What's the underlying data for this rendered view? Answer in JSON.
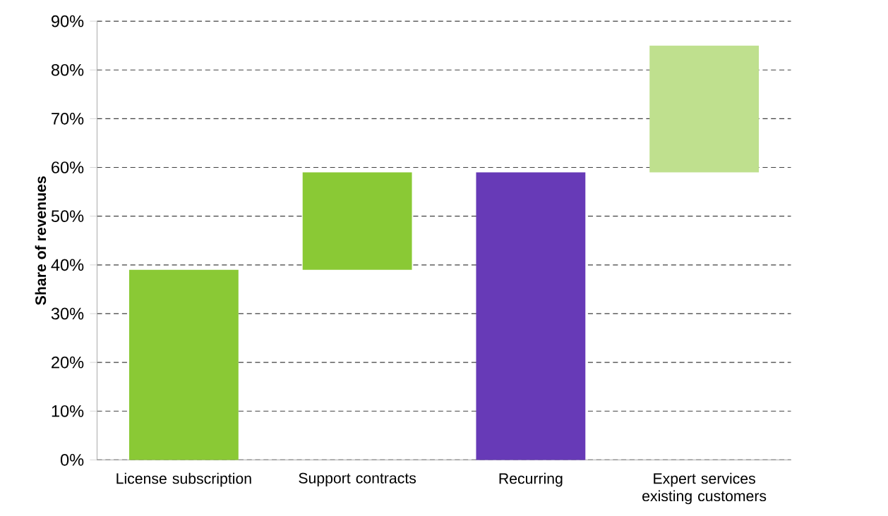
{
  "chart_data": {
    "type": "bar",
    "ylabel": "Share of revenues",
    "categories": [
      "License subscription",
      "Support contracts",
      "Recurring",
      "Expert services existing customers"
    ],
    "values": [
      39,
      20,
      59,
      26
    ],
    "base": [
      0,
      39,
      0,
      59
    ],
    "colors": [
      "#8ac935",
      "#8ac935",
      "#673ab7",
      "#bfe08e"
    ],
    "ylim": [
      0,
      90
    ],
    "yticks": [
      {
        "value": 0,
        "label": "0%"
      },
      {
        "value": 10,
        "label": "10%"
      },
      {
        "value": 20,
        "label": "20%"
      },
      {
        "value": 30,
        "label": "30%"
      },
      {
        "value": 40,
        "label": "40%"
      },
      {
        "value": 50,
        "label": "50%"
      },
      {
        "value": 60,
        "label": "60%"
      },
      {
        "value": 70,
        "label": "70%"
      },
      {
        "value": 80,
        "label": "80%"
      },
      {
        "value": 90,
        "label": "90%"
      }
    ],
    "grid": "y"
  }
}
